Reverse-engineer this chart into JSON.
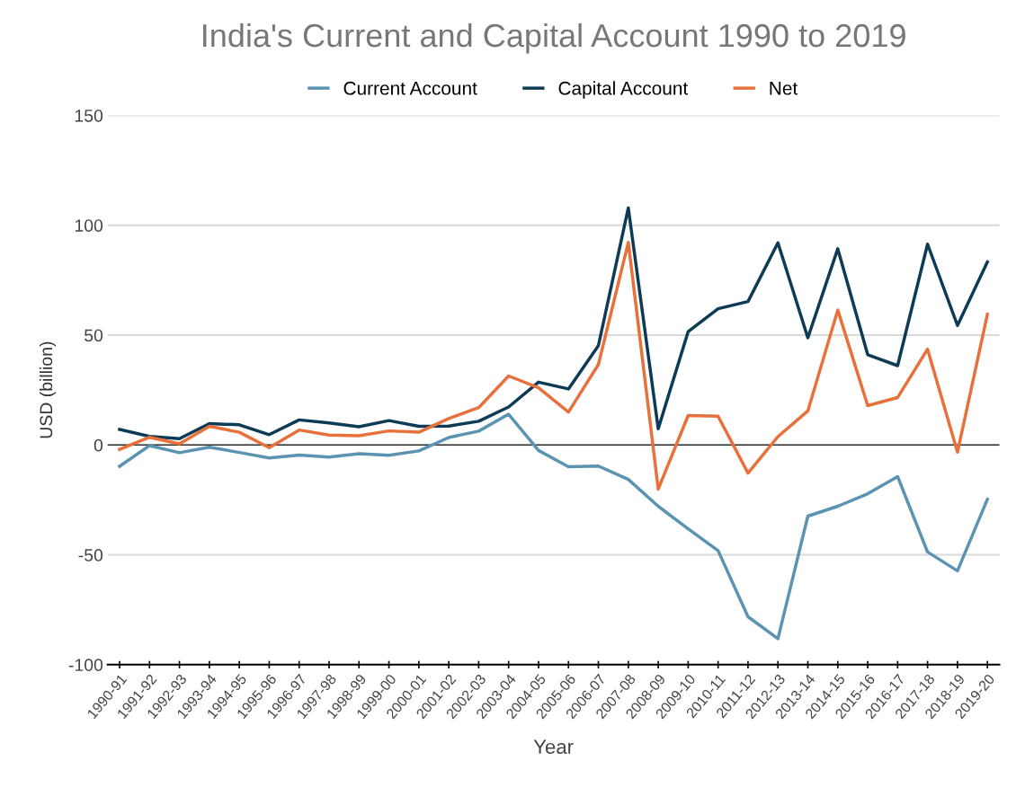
{
  "chart_data": {
    "type": "line",
    "title": "India's Current and Capital Account 1990 to 2019",
    "xlabel": "Year",
    "ylabel": "USD (billion)",
    "categories": [
      "1990-91",
      "1991-92",
      "1992-93",
      "1993-94",
      "1994-95",
      "1995-96",
      "1996-97",
      "1997-98",
      "1998-99",
      "1999-00",
      "2000-01",
      "2001-02",
      "2002-03",
      "2003-04",
      "2004-05",
      "2005-06",
      "2006-07",
      "2007-08",
      "2008-09",
      "2009-10",
      "2010-11",
      "2011-12",
      "2012-13",
      "2013-14",
      "2014-15",
      "2015-16",
      "2016-17",
      "2017-18",
      "2018-19",
      "2019-20"
    ],
    "series": [
      {
        "name": "Current Account",
        "color": "#5b93b3",
        "values": [
          -9.7,
          -0.3,
          -3.5,
          -1,
          -3.4,
          -5.9,
          -4.6,
          -5.5,
          -4,
          -4.7,
          -2.7,
          3.4,
          6.3,
          14,
          -2.5,
          -9.9,
          -9.6,
          -15.7,
          -27.9,
          -38.2,
          -48.1,
          -78.2,
          -88.2,
          -32.4,
          -27.9,
          -22.2,
          -14.4,
          -48.7,
          -57.3,
          -24.7
        ]
      },
      {
        "name": "Capital Account",
        "color": "#0d3b56",
        "values": [
          7.1,
          3.9,
          2.9,
          9.7,
          9.2,
          4.7,
          11.4,
          10,
          8.3,
          11.1,
          8.5,
          8.6,
          10.8,
          17.3,
          28.6,
          25.5,
          45.2,
          107.9,
          7.4,
          51.6,
          62,
          65.3,
          92,
          48.8,
          89.3,
          41.1,
          36.1,
          91.4,
          54.4,
          83.3
        ]
      },
      {
        "name": "Net",
        "color": "#e8703a",
        "values": [
          -2,
          3.5,
          0.5,
          8.5,
          5.8,
          -1.2,
          6.8,
          4.5,
          4.2,
          6.4,
          5.8,
          12,
          17,
          31.4,
          26,
          15,
          36.6,
          92.2,
          -20.1,
          13.4,
          13.1,
          -12.8,
          3.8,
          15.5,
          61.4,
          17.9,
          21.6,
          43.6,
          -3.3,
          59.5
        ]
      }
    ],
    "ylim": [
      -100,
      150
    ],
    "yticks": [
      -100,
      -50,
      0,
      50,
      100,
      150
    ],
    "ref_lines": [
      {
        "axis": "y",
        "value": 0,
        "color": "#333333"
      }
    ],
    "grid": "y",
    "legend": "top",
    "marker": "none",
    "line_style": "solid"
  }
}
